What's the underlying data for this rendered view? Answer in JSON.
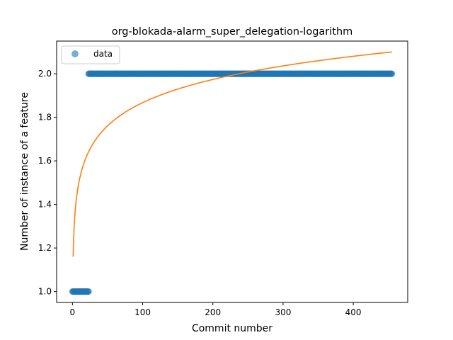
{
  "chart_data": {
    "type": "scatter",
    "title": "org-blokada-alarm_super_delegation-logarithm",
    "xlabel": "Commit number",
    "ylabel": "Number of instance of a feature",
    "xlim": [
      -22.5,
      477.5
    ],
    "ylim": [
      0.95,
      2.15
    ],
    "xticks": [
      0,
      100,
      200,
      300,
      400
    ],
    "yticks": [
      1.0,
      1.2,
      1.4,
      1.6,
      1.8,
      2.0
    ],
    "grid": false,
    "legend": {
      "placement": "upper-left",
      "entries": [
        "data"
      ]
    },
    "series": [
      {
        "name": "data",
        "kind": "scatter",
        "color": "#1f77b4",
        "opacity": 0.6,
        "segments": [
          {
            "x_start": 0,
            "x_end": 23,
            "y": 1.0
          },
          {
            "x_start": 23,
            "x_end": 455,
            "y": 2.0
          }
        ]
      },
      {
        "kind": "line",
        "color": "#ff7f0e",
        "model": "a + b*ln(x)",
        "a": 1.16,
        "b": 0.1536,
        "x_start": 1,
        "x_end": 455
      }
    ]
  }
}
